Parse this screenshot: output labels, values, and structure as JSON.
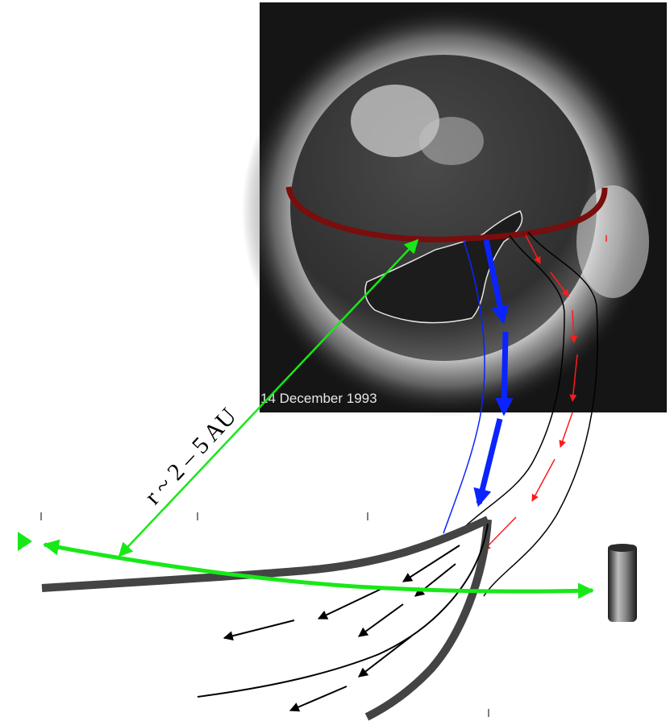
{
  "image": {
    "date_label": "14 December 1993"
  },
  "labels": {
    "distance": "r ~ 2 – 5 AU"
  },
  "colors": {
    "background": "#ffffff",
    "sun_field": "#151515",
    "sun_disk": "#3b3b3b",
    "corona": "#bdbdbd",
    "coronal_hole_outline": "#e6e6e6",
    "arc": "#7a0d0d",
    "green": "#18e818",
    "blue": "#0b24ff",
    "red": "#ff1a1a",
    "black": "#000000",
    "sheet": "#444444"
  },
  "icons": {
    "spacecraft": "spacecraft-icon"
  }
}
